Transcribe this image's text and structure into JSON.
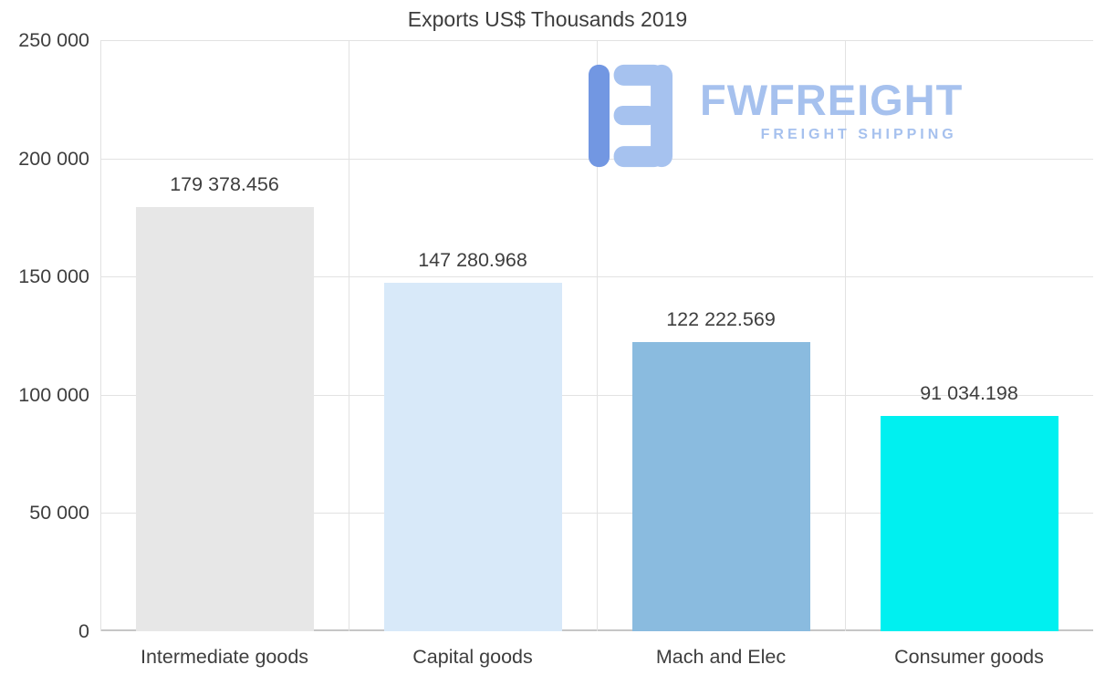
{
  "title": "Exports US$ Thousands 2019",
  "watermark": {
    "brand": "FWFREIGHT",
    "tagline": "FREIGHT SHIPPING",
    "logo_icon": "fwfreight-f-mark-icon",
    "color": "#a6c1ee",
    "icon_color_dark": "#7297e2",
    "icon_color_light": "#a6c2ef"
  },
  "chart_data": {
    "type": "bar",
    "title": "Exports US$ Thousands 2019",
    "categories": [
      "Intermediate goods",
      "Capital goods",
      "Mach and Elec",
      "Consumer goods"
    ],
    "values": [
      179378.456,
      147280.968,
      122222.569,
      91034.198
    ],
    "value_labels": [
      "179 378.456",
      "147 280.968",
      "122 222.569",
      "91 034.198"
    ],
    "bar_colors": [
      "#e7e7e7",
      "#d8e9f9",
      "#8abbdf",
      "#00f0f0"
    ],
    "xlabel": "",
    "ylabel": "",
    "ylim": [
      0,
      250000
    ],
    "ytick_labels": [
      "250 000",
      "200 000",
      "150 000",
      "100 000",
      "50 000",
      "0"
    ],
    "grid": true,
    "legend_position": "none",
    "text_color": "#3e3e3e",
    "gridline_color": "#e2e2e2"
  }
}
